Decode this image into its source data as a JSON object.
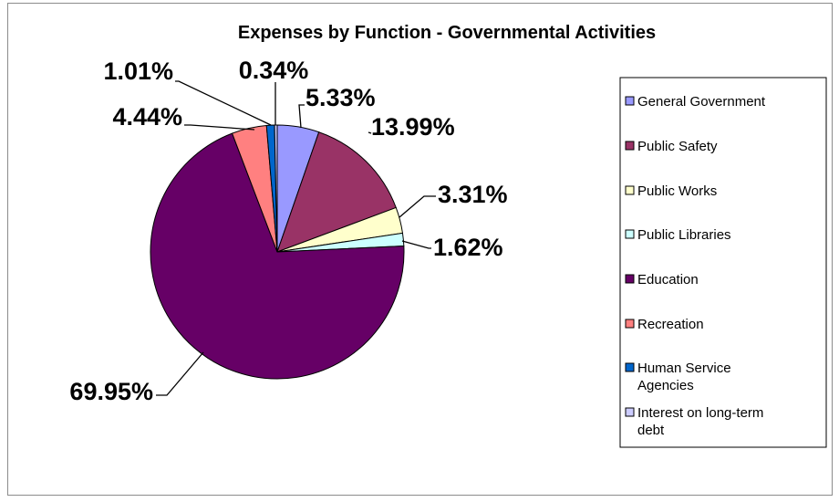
{
  "chart_data": {
    "type": "pie",
    "title": "Expenses by Function - Governmental Activities",
    "legend_position": "right",
    "start_angle_deg": 0,
    "direction": "clockwise",
    "slices": [
      {
        "label": "General Government",
        "value": 5.33,
        "display": "5.33%",
        "color": "#9999ff"
      },
      {
        "label": "Public Safety",
        "value": 13.99,
        "display": "13.99%",
        "color": "#993366"
      },
      {
        "label": "Public Works",
        "value": 3.31,
        "display": "3.31%",
        "color": "#ffffcc"
      },
      {
        "label": "Public Libraries",
        "value": 1.62,
        "display": "1.62%",
        "color": "#ccffff"
      },
      {
        "label": "Education",
        "value": 69.95,
        "display": "69.95%",
        "color": "#660066"
      },
      {
        "label": "Recreation",
        "value": 4.44,
        "display": "4.44%",
        "color": "#ff8080"
      },
      {
        "label": "Human Service Agencies",
        "value": 1.01,
        "display": "1.01%",
        "color": "#0066cc"
      },
      {
        "label": "Interest on long-term debt",
        "value": 0.34,
        "display": "0.34%",
        "color": "#ccccff"
      }
    ]
  }
}
